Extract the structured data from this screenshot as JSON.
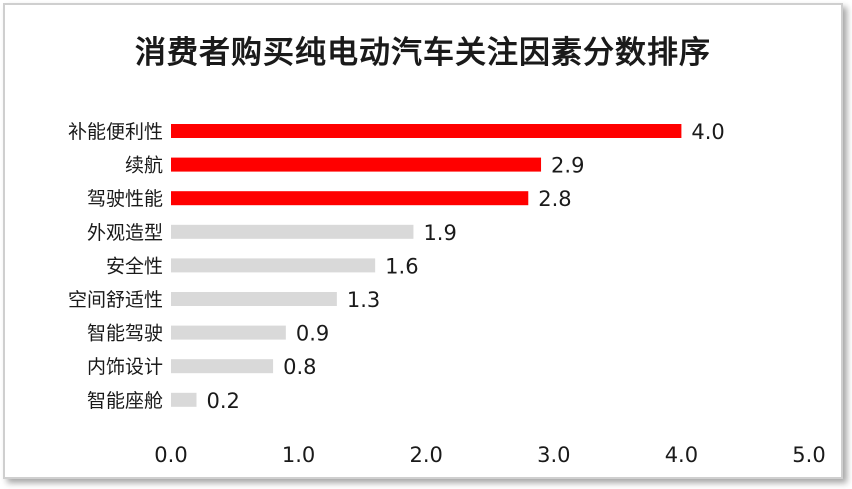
{
  "colors": {
    "highlight": "#ff0000",
    "normal": "#d9d9d9",
    "text": "#1a1a1a"
  },
  "chart_data": {
    "type": "bar",
    "orientation": "horizontal",
    "title": "消费者购买纯电动汽车关注因素分数排序",
    "xlabel": "",
    "ylabel": "",
    "xlim": [
      0,
      5
    ],
    "x_ticks": [
      "0.0",
      "1.0",
      "2.0",
      "3.0",
      "4.0",
      "5.0"
    ],
    "grid": false,
    "categories": [
      "补能便利性",
      "续航",
      "驾驶性能",
      "外观造型",
      "安全性",
      "空间舒适性",
      "智能驾驶",
      "内饰设计",
      "智能座舱"
    ],
    "values": [
      4.0,
      2.9,
      2.8,
      1.9,
      1.6,
      1.3,
      0.9,
      0.8,
      0.2
    ],
    "value_labels": [
      "4.0",
      "2.9",
      "2.8",
      "1.9",
      "1.6",
      "1.3",
      "0.9",
      "0.8",
      "0.2"
    ],
    "highlighted": [
      true,
      true,
      true,
      false,
      false,
      false,
      false,
      false,
      false
    ]
  }
}
